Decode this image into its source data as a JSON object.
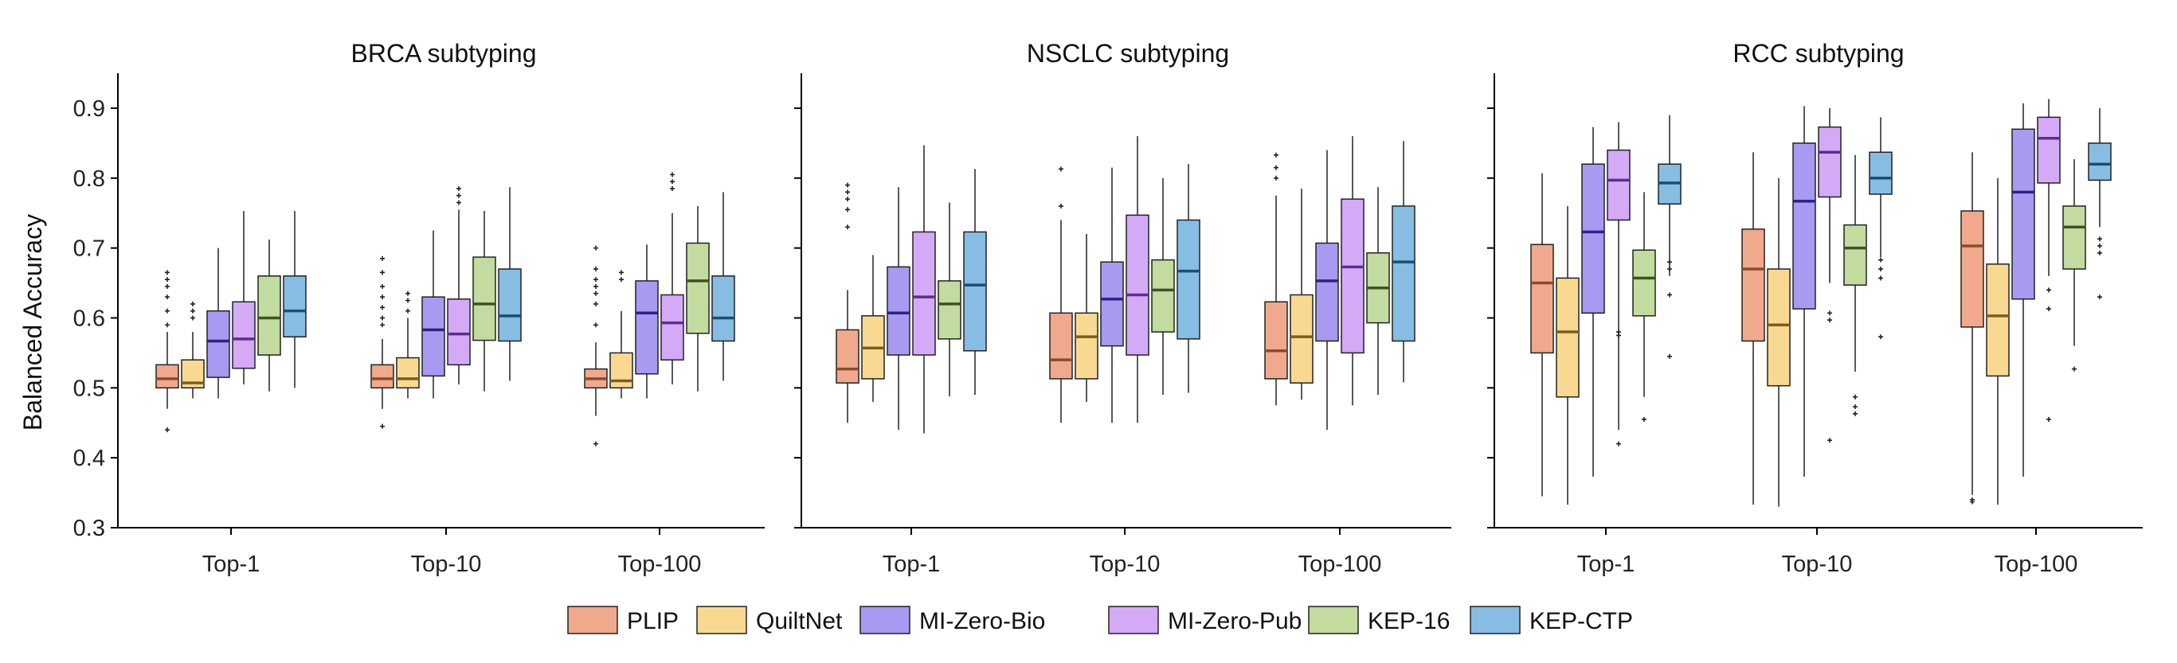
{
  "chart_data": [
    {
      "type": "box",
      "title": "BRCA subtyping",
      "ylabel": "Balanced Accuracy",
      "ylim": [
        0.3,
        0.95
      ],
      "yticks": [
        "0.3",
        "0.4",
        "0.5",
        "0.6",
        "0.7",
        "0.8",
        "0.9"
      ],
      "categories": [
        "Top-1",
        "Top-10",
        "Top-100"
      ],
      "groups": [
        [
          {
            "series": "PLIP",
            "min": 0.47,
            "q1": 0.5,
            "median": 0.513,
            "q3": 0.533,
            "max": 0.58,
            "outliers": [
              0.44,
              0.59,
              0.61,
              0.63,
              0.645,
              0.655,
              0.665
            ]
          },
          {
            "series": "QuiltNet",
            "min": 0.485,
            "q1": 0.5,
            "median": 0.507,
            "q3": 0.54,
            "max": 0.58,
            "outliers": [
              0.6,
              0.61,
              0.62
            ]
          },
          {
            "series": "MI-Zero-Bio",
            "min": 0.485,
            "q1": 0.515,
            "median": 0.567,
            "q3": 0.61,
            "max": 0.7,
            "outliers": []
          },
          {
            "series": "MI-Zero-Pub",
            "min": 0.505,
            "q1": 0.528,
            "median": 0.57,
            "q3": 0.623,
            "max": 0.753,
            "outliers": []
          },
          {
            "series": "KEP-16",
            "min": 0.495,
            "q1": 0.547,
            "median": 0.6,
            "q3": 0.66,
            "max": 0.712,
            "outliers": []
          },
          {
            "series": "KEP-CTP",
            "min": 0.5,
            "q1": 0.573,
            "median": 0.61,
            "q3": 0.66,
            "max": 0.753,
            "outliers": []
          }
        ],
        [
          {
            "series": "PLIP",
            "min": 0.47,
            "q1": 0.5,
            "median": 0.513,
            "q3": 0.533,
            "max": 0.57,
            "outliers": [
              0.445,
              0.59,
              0.6,
              0.615,
              0.63,
              0.645,
              0.665,
              0.685
            ]
          },
          {
            "series": "QuiltNet",
            "min": 0.485,
            "q1": 0.5,
            "median": 0.513,
            "q3": 0.543,
            "max": 0.6,
            "outliers": [
              0.61,
              0.625,
              0.635
            ]
          },
          {
            "series": "MI-Zero-Bio",
            "min": 0.485,
            "q1": 0.517,
            "median": 0.583,
            "q3": 0.63,
            "max": 0.725,
            "outliers": []
          },
          {
            "series": "MI-Zero-Pub",
            "min": 0.505,
            "q1": 0.533,
            "median": 0.577,
            "q3": 0.627,
            "max": 0.755,
            "outliers": [
              0.765,
              0.775,
              0.785
            ]
          },
          {
            "series": "KEP-16",
            "min": 0.495,
            "q1": 0.568,
            "median": 0.62,
            "q3": 0.687,
            "max": 0.753,
            "outliers": []
          },
          {
            "series": "KEP-CTP",
            "min": 0.51,
            "q1": 0.567,
            "median": 0.603,
            "q3": 0.67,
            "max": 0.787,
            "outliers": []
          }
        ],
        [
          {
            "series": "PLIP",
            "min": 0.46,
            "q1": 0.5,
            "median": 0.513,
            "q3": 0.527,
            "max": 0.565,
            "outliers": [
              0.42,
              0.59,
              0.62,
              0.635,
              0.645,
              0.655,
              0.67,
              0.7
            ]
          },
          {
            "series": "QuiltNet",
            "min": 0.485,
            "q1": 0.5,
            "median": 0.51,
            "q3": 0.55,
            "max": 0.61,
            "outliers": [
              0.655,
              0.665
            ]
          },
          {
            "series": "MI-Zero-Bio",
            "min": 0.485,
            "q1": 0.52,
            "median": 0.607,
            "q3": 0.653,
            "max": 0.705,
            "outliers": []
          },
          {
            "series": "MI-Zero-Pub",
            "min": 0.505,
            "q1": 0.54,
            "median": 0.593,
            "q3": 0.633,
            "max": 0.75,
            "outliers": [
              0.785,
              0.795,
              0.805
            ]
          },
          {
            "series": "KEP-16",
            "min": 0.495,
            "q1": 0.578,
            "median": 0.653,
            "q3": 0.707,
            "max": 0.76,
            "outliers": []
          },
          {
            "series": "KEP-CTP",
            "min": 0.51,
            "q1": 0.567,
            "median": 0.6,
            "q3": 0.66,
            "max": 0.78,
            "outliers": []
          }
        ]
      ]
    },
    {
      "type": "box",
      "title": "NSCLC subtyping",
      "ylim": [
        0.3,
        0.95
      ],
      "categories": [
        "Top-1",
        "Top-10",
        "Top-100"
      ],
      "groups": [
        [
          {
            "series": "PLIP",
            "min": 0.45,
            "q1": 0.507,
            "median": 0.527,
            "q3": 0.583,
            "max": 0.64,
            "outliers": [
              0.73,
              0.755,
              0.77,
              0.78,
              0.79
            ]
          },
          {
            "series": "QuiltNet",
            "min": 0.48,
            "q1": 0.513,
            "median": 0.557,
            "q3": 0.603,
            "max": 0.69,
            "outliers": []
          },
          {
            "series": "MI-Zero-Bio",
            "min": 0.44,
            "q1": 0.547,
            "median": 0.607,
            "q3": 0.673,
            "max": 0.787,
            "outliers": []
          },
          {
            "series": "MI-Zero-Pub",
            "min": 0.435,
            "q1": 0.547,
            "median": 0.63,
            "q3": 0.723,
            "max": 0.847,
            "outliers": []
          },
          {
            "series": "KEP-16",
            "min": 0.488,
            "q1": 0.57,
            "median": 0.62,
            "q3": 0.653,
            "max": 0.765,
            "outliers": []
          },
          {
            "series": "KEP-CTP",
            "min": 0.49,
            "q1": 0.553,
            "median": 0.647,
            "q3": 0.723,
            "max": 0.813,
            "outliers": []
          }
        ],
        [
          {
            "series": "PLIP",
            "min": 0.45,
            "q1": 0.513,
            "median": 0.54,
            "q3": 0.607,
            "max": 0.74,
            "outliers": [
              0.76,
              0.813
            ]
          },
          {
            "series": "QuiltNet",
            "min": 0.48,
            "q1": 0.513,
            "median": 0.573,
            "q3": 0.607,
            "max": 0.72,
            "outliers": []
          },
          {
            "series": "MI-Zero-Bio",
            "min": 0.45,
            "q1": 0.56,
            "median": 0.627,
            "q3": 0.68,
            "max": 0.815,
            "outliers": []
          },
          {
            "series": "MI-Zero-Pub",
            "min": 0.45,
            "q1": 0.547,
            "median": 0.633,
            "q3": 0.747,
            "max": 0.86,
            "outliers": []
          },
          {
            "series": "KEP-16",
            "min": 0.49,
            "q1": 0.58,
            "median": 0.64,
            "q3": 0.683,
            "max": 0.8,
            "outliers": []
          },
          {
            "series": "KEP-CTP",
            "min": 0.493,
            "q1": 0.57,
            "median": 0.667,
            "q3": 0.74,
            "max": 0.82,
            "outliers": []
          }
        ],
        [
          {
            "series": "PLIP",
            "min": 0.475,
            "q1": 0.513,
            "median": 0.553,
            "q3": 0.623,
            "max": 0.775,
            "outliers": [
              0.8,
              0.815,
              0.833
            ]
          },
          {
            "series": "QuiltNet",
            "min": 0.483,
            "q1": 0.507,
            "median": 0.573,
            "q3": 0.633,
            "max": 0.785,
            "outliers": []
          },
          {
            "series": "MI-Zero-Bio",
            "min": 0.44,
            "q1": 0.567,
            "median": 0.653,
            "q3": 0.707,
            "max": 0.84,
            "outliers": []
          },
          {
            "series": "MI-Zero-Pub",
            "min": 0.475,
            "q1": 0.55,
            "median": 0.673,
            "q3": 0.77,
            "max": 0.86,
            "outliers": []
          },
          {
            "series": "KEP-16",
            "min": 0.49,
            "q1": 0.593,
            "median": 0.643,
            "q3": 0.693,
            "max": 0.787,
            "outliers": []
          },
          {
            "series": "KEP-CTP",
            "min": 0.508,
            "q1": 0.567,
            "median": 0.68,
            "q3": 0.76,
            "max": 0.853,
            "outliers": []
          }
        ]
      ]
    },
    {
      "type": "box",
      "title": "RCC subtyping",
      "ylim": [
        0.3,
        0.95
      ],
      "categories": [
        "Top-1",
        "Top-10",
        "Top-100"
      ],
      "groups": [
        [
          {
            "series": "PLIP",
            "min": 0.345,
            "q1": 0.55,
            "median": 0.65,
            "q3": 0.705,
            "max": 0.807,
            "outliers": []
          },
          {
            "series": "QuiltNet",
            "min": 0.333,
            "q1": 0.487,
            "median": 0.58,
            "q3": 0.657,
            "max": 0.76,
            "outliers": []
          },
          {
            "series": "MI-Zero-Bio",
            "min": 0.373,
            "q1": 0.607,
            "median": 0.723,
            "q3": 0.82,
            "max": 0.873,
            "outliers": []
          },
          {
            "series": "MI-Zero-Pub",
            "min": 0.44,
            "q1": 0.74,
            "median": 0.797,
            "q3": 0.84,
            "max": 0.88,
            "outliers": [
              0.42,
              0.575,
              0.58
            ]
          },
          {
            "series": "KEP-16",
            "min": 0.487,
            "q1": 0.603,
            "median": 0.657,
            "q3": 0.697,
            "max": 0.78,
            "outliers": [
              0.455
            ]
          },
          {
            "series": "KEP-CTP",
            "min": 0.66,
            "q1": 0.763,
            "median": 0.793,
            "q3": 0.82,
            "max": 0.89,
            "outliers": [
              0.545,
              0.633,
              0.67,
              0.68
            ]
          }
        ],
        [
          {
            "series": "PLIP",
            "min": 0.333,
            "q1": 0.567,
            "median": 0.67,
            "q3": 0.727,
            "max": 0.837,
            "outliers": []
          },
          {
            "series": "QuiltNet",
            "min": 0.33,
            "q1": 0.503,
            "median": 0.59,
            "q3": 0.67,
            "max": 0.8,
            "outliers": []
          },
          {
            "series": "MI-Zero-Bio",
            "min": 0.373,
            "q1": 0.613,
            "median": 0.767,
            "q3": 0.85,
            "max": 0.903,
            "outliers": []
          },
          {
            "series": "MI-Zero-Pub",
            "min": 0.65,
            "q1": 0.773,
            "median": 0.837,
            "q3": 0.873,
            "max": 0.9,
            "outliers": [
              0.425,
              0.597,
              0.607
            ]
          },
          {
            "series": "KEP-16",
            "min": 0.523,
            "q1": 0.647,
            "median": 0.7,
            "q3": 0.733,
            "max": 0.833,
            "outliers": [
              0.463,
              0.473,
              0.487
            ]
          },
          {
            "series": "KEP-CTP",
            "min": 0.687,
            "q1": 0.777,
            "median": 0.8,
            "q3": 0.837,
            "max": 0.887,
            "outliers": [
              0.573,
              0.657,
              0.67,
              0.683
            ]
          }
        ],
        [
          {
            "series": "PLIP",
            "min": 0.347,
            "q1": 0.587,
            "median": 0.703,
            "q3": 0.753,
            "max": 0.837,
            "outliers": [
              0.337,
              0.34
            ]
          },
          {
            "series": "QuiltNet",
            "min": 0.333,
            "q1": 0.517,
            "median": 0.603,
            "q3": 0.677,
            "max": 0.8,
            "outliers": []
          },
          {
            "series": "MI-Zero-Bio",
            "min": 0.373,
            "q1": 0.627,
            "median": 0.78,
            "q3": 0.87,
            "max": 0.907,
            "outliers": []
          },
          {
            "series": "MI-Zero-Pub",
            "min": 0.66,
            "q1": 0.793,
            "median": 0.857,
            "q3": 0.887,
            "max": 0.913,
            "outliers": [
              0.455,
              0.613,
              0.64
            ]
          },
          {
            "series": "KEP-16",
            "min": 0.56,
            "q1": 0.67,
            "median": 0.73,
            "q3": 0.76,
            "max": 0.827,
            "outliers": [
              0.527
            ]
          },
          {
            "series": "KEP-CTP",
            "min": 0.73,
            "q1": 0.797,
            "median": 0.82,
            "q3": 0.85,
            "max": 0.9,
            "outliers": [
              0.63,
              0.693,
              0.703,
              0.713
            ]
          }
        ]
      ]
    }
  ],
  "legend": {
    "placement": "bottom-center",
    "items": [
      {
        "name": "PLIP",
        "fill": "#F0A98C",
        "median": "#8B4A2C"
      },
      {
        "name": "QuiltNet",
        "fill": "#F9D992",
        "median": "#7D5C1F"
      },
      {
        "name": "MI-Zero-Bio",
        "fill": "#A79AF0",
        "median": "#2E2288"
      },
      {
        "name": "MI-Zero-Pub",
        "fill": "#D4AAF7",
        "median": "#5E2D8C"
      },
      {
        "name": "KEP-16",
        "fill": "#C2DB9F",
        "median": "#3E5226"
      },
      {
        "name": "KEP-CTP",
        "fill": "#88BDE3",
        "median": "#1E4C75"
      }
    ]
  }
}
